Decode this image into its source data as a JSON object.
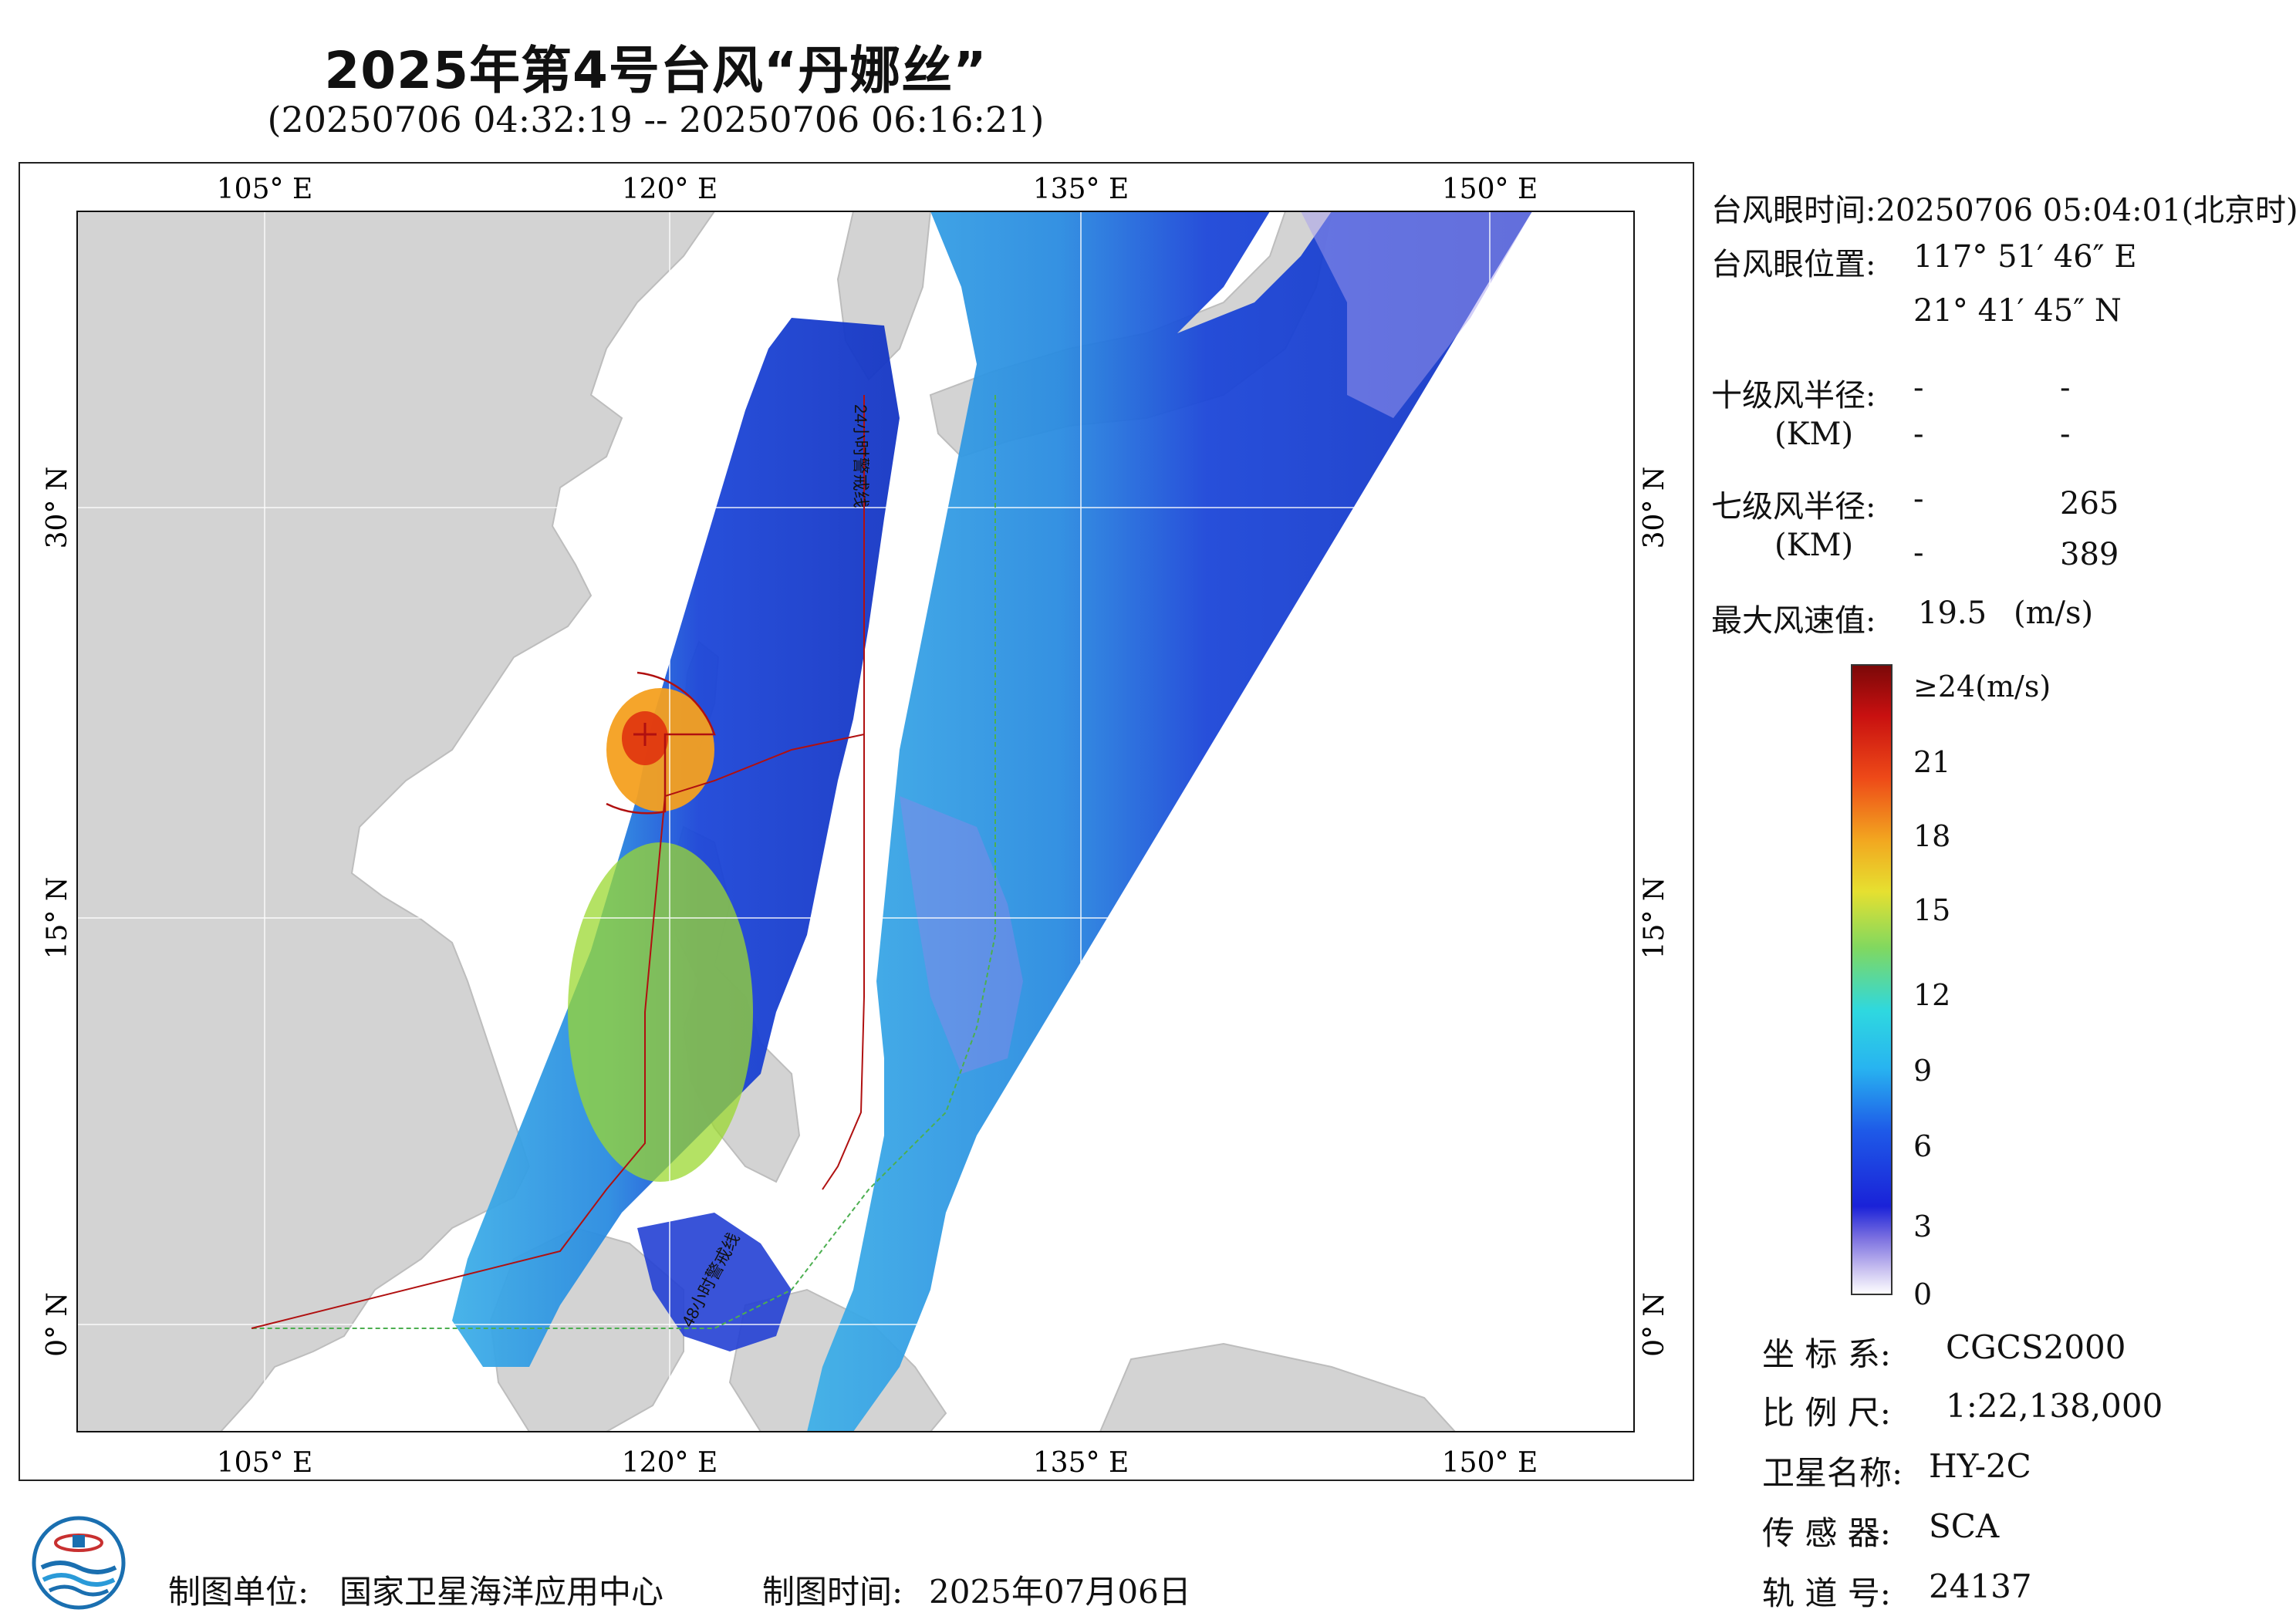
{
  "header": {
    "title": "2025年第4号台风“丹娜丝”",
    "subtitle": "(20250706 04:32:19 -- 20250706 06:16:21)"
  },
  "map": {
    "lon_ticks": [
      "105° E",
      "120° E",
      "135° E",
      "150° E"
    ],
    "lat_ticks": [
      "30° N",
      "15° N",
      "0° N"
    ],
    "track_labels": [
      "24小时警戒线",
      "48小时警戒线"
    ],
    "colors": {
      "land": "#d3d3d3",
      "sea": "#ffffff",
      "track": "#b01010",
      "warning48": "#4caf50"
    }
  },
  "info": {
    "eye_time_label": "台风眼时间:",
    "eye_time": "20250706 05:04:01(北京时)",
    "eye_pos_label": "台风眼位置:",
    "eye_lon": "117° 51′ 46″ E",
    "eye_lat": "21° 41′ 45″ N",
    "r10_label": "十级风半径:",
    "r10_unit": "(KM)",
    "r10_values": [
      "-",
      "-",
      "-",
      "-"
    ],
    "r7_label": "七级风半径:",
    "r7_unit": "(KM)",
    "r7_values": [
      "-",
      "265",
      "-",
      "389"
    ],
    "max_wind_label": "最大风速值:",
    "max_wind": "19.5",
    "max_wind_unit": "(m/s)"
  },
  "colorbar": {
    "labels": [
      "≥24(m/s)",
      "21",
      "18",
      "15",
      "12",
      "9",
      "6",
      "3",
      "0"
    ],
    "min": 0,
    "max": 24
  },
  "meta": {
    "crs_label": "坐 标 系:",
    "crs": "CGCS2000",
    "scale_label": "比 例 尺:",
    "scale": "1:22,138,000",
    "sat_label": "卫星名称:",
    "sat": "HY-2C",
    "sensor_label": "传 感 器:",
    "sensor": "SCA",
    "orbit_label": "轨 道 号:",
    "orbit": "24137"
  },
  "footer": {
    "maker_label": "制图单位:",
    "maker": "国家卫星海洋应用中心",
    "date_label": "制图时间:",
    "date": "2025年07月06日"
  }
}
